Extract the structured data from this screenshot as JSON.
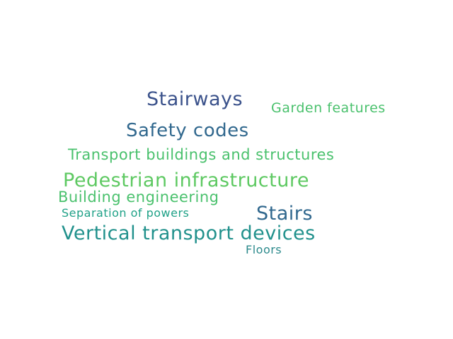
{
  "words": {
    "stairways": {
      "text": "Stairways",
      "color": "#3b528b"
    },
    "garden": {
      "text": "Garden features",
      "color": "#4ac16d"
    },
    "safety": {
      "text": "Safety codes",
      "color": "#31688e"
    },
    "transport": {
      "text": "Transport buildings and structures",
      "color": "#4ac16d"
    },
    "pedestrian": {
      "text": "Pedestrian infrastructure",
      "color": "#5ec962"
    },
    "building": {
      "text": "Building engineering",
      "color": "#4ac16d"
    },
    "separation": {
      "text": "Separation of powers",
      "color": "#1fa187"
    },
    "stairs": {
      "text": "Stairs",
      "color": "#31688e"
    },
    "vertical": {
      "text": "Vertical transport devices",
      "color": "#21918c"
    },
    "floors": {
      "text": "Floors",
      "color": "#2c8a8c"
    }
  }
}
